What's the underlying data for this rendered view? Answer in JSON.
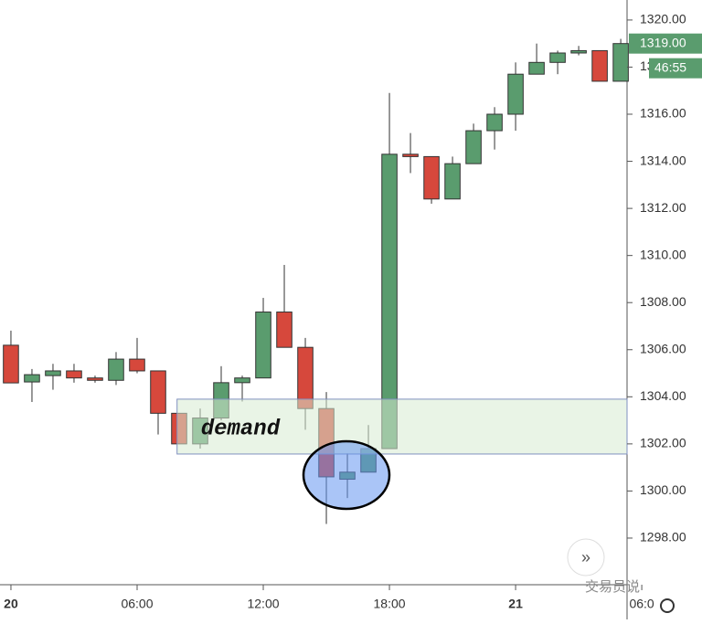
{
  "chart_data": {
    "type": "candlestick",
    "x": [
      0,
      1,
      2,
      3,
      4,
      5,
      6,
      7,
      8,
      9,
      10,
      11,
      12,
      13,
      14,
      15,
      16,
      17,
      18,
      19,
      20,
      21,
      22,
      23,
      24,
      25,
      26,
      27,
      28,
      29
    ],
    "open": [
      1306.19,
      1304.63,
      1304.9,
      1305.1,
      1304.8,
      1304.7,
      1305.6,
      1305.1,
      1303.3,
      1302.0,
      1303.1,
      1304.6,
      1304.8,
      1307.6,
      1306.1,
      1303.5,
      1300.5,
      1300.8,
      1301.8,
      1314.3,
      1314.2,
      1312.4,
      1313.9,
      1315.3,
      1316.0,
      1317.7,
      1318.2,
      1318.6,
      1318.7,
      1317.4
    ],
    "high": [
      1306.81,
      1305.18,
      1305.4,
      1305.4,
      1304.9,
      1305.9,
      1306.5,
      1305.1,
      1303.3,
      1303.5,
      1305.3,
      1304.9,
      1308.2,
      1309.6,
      1306.5,
      1304.2,
      1301.6,
      1302.8,
      1316.9,
      1315.2,
      1314.2,
      1314.2,
      1315.6,
      1316.3,
      1318.2,
      1319.0,
      1318.7,
      1318.9,
      1318.7,
      1319.2
    ],
    "low": [
      1304.59,
      1303.78,
      1304.3,
      1304.6,
      1304.6,
      1304.5,
      1305.0,
      1302.4,
      1302.0,
      1301.8,
      1303.0,
      1303.8,
      1304.8,
      1306.1,
      1302.6,
      1298.6,
      1299.7,
      1300.8,
      1301.8,
      1313.5,
      1312.2,
      1312.4,
      1313.9,
      1314.5,
      1315.3,
      1317.7,
      1317.7,
      1318.5,
      1317.4,
      1317.4
    ],
    "close": [
      1304.59,
      1304.94,
      1305.1,
      1304.8,
      1304.7,
      1305.6,
      1305.1,
      1303.3,
      1302.0,
      1303.1,
      1304.6,
      1304.8,
      1307.6,
      1306.1,
      1303.5,
      1300.6,
      1300.8,
      1301.8,
      1314.3,
      1314.2,
      1312.4,
      1313.9,
      1315.3,
      1316.0,
      1317.7,
      1318.2,
      1318.6,
      1318.7,
      1317.4,
      1319.0
    ],
    "up_color": "#5a9c6e",
    "down_color": "#d6483c",
    "xlim": [
      -0.52,
      29.3
    ],
    "xticks": [
      {
        "value": 0,
        "label": "20"
      },
      {
        "value": 6,
        "label": "06:00"
      },
      {
        "value": 12,
        "label": "12:00"
      },
      {
        "value": 18,
        "label": "18:00"
      },
      {
        "value": 24,
        "label": "21"
      },
      {
        "value": 30,
        "label": "06:0"
      }
    ],
    "ylim": [
      1296.02,
      1320.85
    ],
    "yticks": [
      {
        "value": 1298,
        "label": "1298.00"
      },
      {
        "value": 1300,
        "label": "1300.00"
      },
      {
        "value": 1302,
        "label": "1302.00"
      },
      {
        "value": 1304,
        "label": "1304.00"
      },
      {
        "value": 1306,
        "label": "1306.00"
      },
      {
        "value": 1308,
        "label": "1308.00"
      },
      {
        "value": 1310,
        "label": "1310.00"
      },
      {
        "value": 1312,
        "label": "1312.00"
      },
      {
        "value": 1314,
        "label": "1314.00"
      },
      {
        "value": 1316,
        "label": "1316.00"
      },
      {
        "value": 1318,
        "label": "1318.00"
      },
      {
        "value": 1320,
        "label": "1320.00"
      }
    ],
    "zone": {
      "label": "demand",
      "low": 1301.57,
      "high": 1303.9,
      "x_start": 7.9
    },
    "last_price": {
      "value": 1319,
      "label": "1319.00"
    },
    "countdown": "46:55",
    "watermark": "交易员说"
  }
}
